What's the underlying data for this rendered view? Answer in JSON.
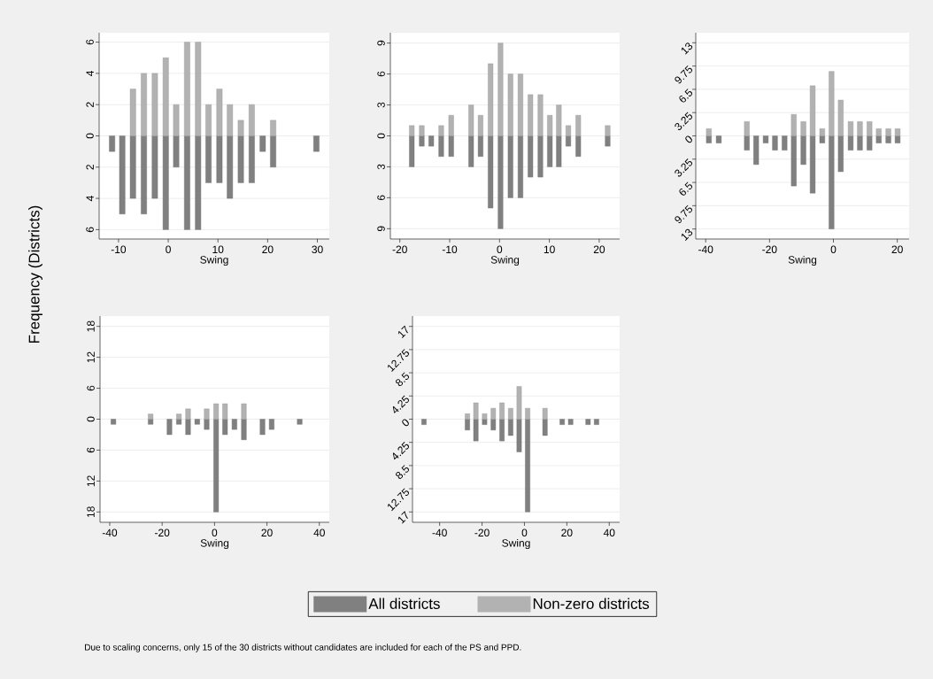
{
  "chart_data": [
    {
      "type": "bar",
      "stacked": true,
      "ylabel": "Frequency (Districts)",
      "xlabel": "Swing",
      "legend": "bottom",
      "grid": "y",
      "annotations": [
        "Due to scaling concerns, only 15 of the 30 districts without candidates are included for each of the PS and PPD."
      ],
      "x": [
        -11.3,
        -9.25,
        -7.1,
        -4.9,
        -2.7,
        -0.5,
        1.6,
        3.8,
        6.0,
        8.1,
        10.3,
        12.4,
        14.6,
        16.8,
        19.0,
        21.1,
        29.8
      ],
      "series": [
        {
          "name": "All districts",
          "color": "#808080",
          "values": [
            -1,
            -5,
            -4,
            -5,
            -4,
            -6,
            -2,
            -6,
            -6,
            -3,
            -3,
            -4,
            -3,
            -3,
            -1,
            -2,
            -1
          ]
        },
        {
          "name": "Non-zero districts",
          "color": "#b2b2b2",
          "values": [
            null,
            null,
            3,
            4,
            4,
            5,
            2,
            6,
            6,
            2,
            3,
            2,
            1,
            2,
            null,
            1,
            null
          ]
        }
      ],
      "xlim": [
        -13.9,
        32.4
      ],
      "ylim": [
        -6.6,
        6.6
      ],
      "xticks": [
        -10,
        0,
        10,
        20,
        30
      ],
      "yticks": [
        6,
        4,
        2,
        0,
        {
          "value": -2,
          "label": "2"
        },
        {
          "value": -4,
          "label": "4"
        },
        {
          "value": -6,
          "label": "6"
        }
      ]
    },
    {
      "type": "bar",
      "stacked": true,
      "xlabel": "Swing",
      "grid": "y",
      "x": [
        -17.6,
        -15.6,
        -13.7,
        -11.7,
        -9.7,
        -5.7,
        -3.8,
        -1.8,
        0.2,
        2.2,
        4.2,
        6.2,
        8.2,
        10.1,
        11.9,
        13.8,
        15.8,
        21.7
      ],
      "series": [
        {
          "color": "#808080",
          "values": [
            -3,
            -1,
            -1,
            -2,
            -2,
            -3,
            -2,
            -7,
            -9,
            -6,
            -6,
            -4,
            -4,
            -3,
            -3,
            -1,
            -2,
            -1
          ]
        },
        {
          "color": "#b2b2b2",
          "values": [
            1,
            1,
            null,
            1,
            2,
            3,
            2,
            7,
            9,
            6,
            6,
            4,
            4,
            2,
            3,
            1,
            2,
            1
          ]
        }
      ],
      "xlim": [
        -21.9,
        24.1
      ],
      "ylim": [
        -10,
        10
      ],
      "xticks": [
        -20,
        -10,
        0,
        10,
        20
      ],
      "yticks": [
        9,
        6,
        3,
        0,
        {
          "value": -3,
          "label": "3"
        },
        {
          "value": -6,
          "label": "6"
        },
        {
          "value": -9,
          "label": "9"
        }
      ]
    },
    {
      "type": "bar",
      "stacked": true,
      "xlabel": "Swing",
      "grid": "y",
      "x": [
        -39.0,
        -35.9,
        -27.1,
        -24.2,
        -21.2,
        -18.3,
        -15.3,
        -12.4,
        -9.4,
        -6.5,
        -3.5,
        -0.6,
        2.3,
        5.4,
        8.3,
        11.3,
        14.2,
        17.2,
        20.1
      ],
      "series": [
        {
          "color": "#808080",
          "values": [
            -1,
            -1,
            -2,
            -4,
            -1,
            -2,
            -2,
            -7,
            -4,
            -8,
            -1,
            -13,
            -5,
            -2,
            -2,
            -2,
            -1,
            -1,
            -1
          ]
        },
        {
          "color": "#b2b2b2",
          "values": [
            1,
            null,
            2,
            null,
            null,
            null,
            null,
            3,
            2,
            7,
            1,
            9,
            5,
            2,
            2,
            2,
            1,
            1,
            1
          ]
        }
      ],
      "xlim": [
        -43.1,
        23.7
      ],
      "ylim": [
        -14.4,
        14.4
      ],
      "xticks": [
        -40,
        -20,
        0,
        20
      ],
      "yticks": [
        13,
        9.75,
        6.5,
        3.25,
        0,
        {
          "value": -3.25,
          "label": "3.25"
        },
        {
          "value": -6.5,
          "label": "6.5"
        },
        {
          "value": -9.75,
          "label": "9.75"
        },
        {
          "value": -13,
          "label": "13"
        }
      ]
    },
    {
      "type": "bar",
      "stacked": true,
      "xlabel": "Swing",
      "grid": "y",
      "x": [
        -38.6,
        -24.4,
        -17.2,
        -13.6,
        -10.1,
        -6.6,
        -3.0,
        0.6,
        4.0,
        7.6,
        11.2,
        18.3,
        21.8,
        32.5
      ],
      "series": [
        {
          "color": "#808080",
          "values": [
            -1,
            -1,
            -3,
            -1,
            -3,
            -1,
            -2,
            -18,
            -3,
            -2,
            -4,
            -3,
            -2,
            -1
          ]
        },
        {
          "color": "#b2b2b2",
          "values": [
            null,
            1,
            null,
            1,
            2,
            null,
            2,
            3,
            3,
            null,
            3,
            null,
            null,
            null
          ]
        }
      ],
      "xlim": [
        -43.7,
        43.8
      ],
      "ylim": [
        -20,
        20
      ],
      "xticks": [
        -40,
        -20,
        0,
        20,
        40
      ],
      "yticks": [
        18,
        12,
        6,
        0,
        {
          "value": -6,
          "label": "6"
        },
        {
          "value": -12,
          "label": "12"
        },
        {
          "value": -18,
          "label": "18"
        }
      ]
    },
    {
      "type": "bar",
      "stacked": true,
      "xlabel": "Swing",
      "grid": "y",
      "x": [
        -47.4,
        -26.9,
        -22.9,
        -18.8,
        -14.7,
        -10.6,
        -6.5,
        -2.5,
        1.5,
        9.7,
        17.8,
        21.8,
        30.0,
        34.0
      ],
      "series": [
        {
          "color": "#808080",
          "values": [
            -1,
            -2,
            -4,
            -1,
            -2,
            -4,
            -3,
            -6,
            -17,
            -3,
            -1,
            -1,
            -1,
            -1
          ]
        },
        {
          "color": "#b2b2b2",
          "values": [
            null,
            1,
            3,
            1,
            2,
            3,
            2,
            6,
            2,
            2,
            null,
            null,
            null,
            null
          ]
        }
      ],
      "xlim": [
        -52.8,
        44.9
      ],
      "ylim": [
        -18.9,
        18.9
      ],
      "xticks": [
        -40,
        -20,
        0,
        20,
        40
      ],
      "yticks": [
        17,
        12.75,
        8.5,
        4.25,
        0,
        {
          "value": -4.25,
          "label": "4.25"
        },
        {
          "value": -8.5,
          "label": "8.5"
        },
        {
          "value": -12.75,
          "label": "12.75"
        },
        {
          "value": -17,
          "label": "17"
        }
      ]
    }
  ]
}
